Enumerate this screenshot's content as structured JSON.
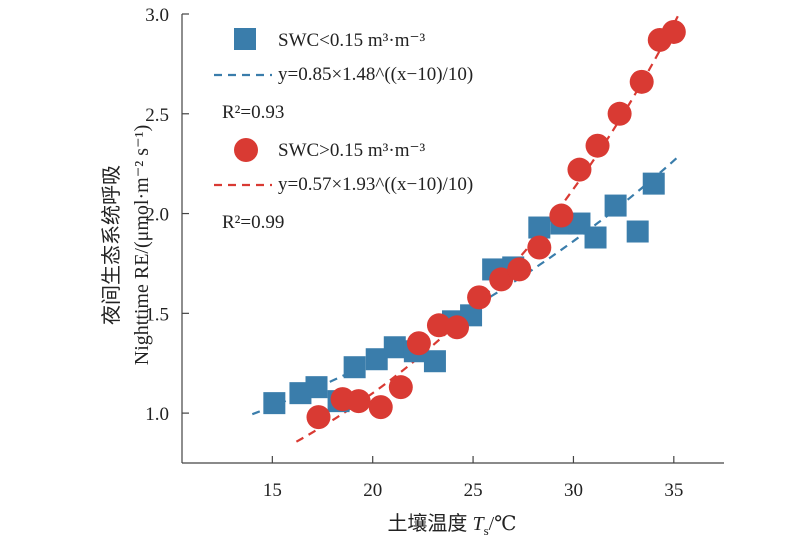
{
  "chart_data": {
    "type": "scatter",
    "xlabel": "土壤温度 Ts/℃",
    "xlabel_main": "土壤温度 ",
    "xlabel_symbol": "T",
    "xlabel_sub": "s",
    "xlabel_unit": "/℃",
    "ylabel_cn": "夜间生态系统呼吸",
    "ylabel_en": "Nighttime RE/(μmol·m⁻² s⁻¹)",
    "xlim": [
      10.5,
      37.5
    ],
    "ylim": [
      0.75,
      3.0
    ],
    "xticks": [
      "15",
      "20",
      "25",
      "30",
      "35"
    ],
    "yticks": [
      "1.0",
      "1.5",
      "2.0",
      "2.5",
      "3.0"
    ],
    "grid": false,
    "legend_position": "top-left",
    "series": [
      {
        "name": "SWC<0.15 m³·m⁻³",
        "marker": "square",
        "color": "#3a7dab",
        "fit_label": "y=0.85×1.48^((x−10)/10)",
        "r2_label": "R²=0.93",
        "fit": {
          "a": 0.85,
          "b": 1.48,
          "x_range": [
            14,
            35.2
          ]
        },
        "points": [
          [
            15.1,
            1.05
          ],
          [
            16.4,
            1.1
          ],
          [
            17.2,
            1.13
          ],
          [
            18.3,
            1.06
          ],
          [
            19.1,
            1.23
          ],
          [
            20.2,
            1.27
          ],
          [
            21.1,
            1.33
          ],
          [
            22.1,
            1.31
          ],
          [
            23.1,
            1.26
          ],
          [
            24.0,
            1.46
          ],
          [
            24.9,
            1.49
          ],
          [
            26.0,
            1.72
          ],
          [
            27.0,
            1.73
          ],
          [
            28.3,
            1.93
          ],
          [
            29.4,
            1.95
          ],
          [
            30.3,
            1.95
          ],
          [
            31.1,
            1.88
          ],
          [
            32.1,
            2.04
          ],
          [
            33.2,
            1.91
          ],
          [
            34.0,
            2.15
          ]
        ]
      },
      {
        "name": "SWC>0.15 m³·m⁻³",
        "marker": "circle",
        "color": "#d93a33",
        "fit_label": "y=0.57×1.93^((x−10)/10)",
        "r2_label": "R²=0.99",
        "fit": {
          "a": 0.57,
          "b": 1.93,
          "x_range": [
            16.2,
            35.2
          ]
        },
        "points": [
          [
            17.3,
            0.98
          ],
          [
            18.5,
            1.07
          ],
          [
            19.3,
            1.06
          ],
          [
            20.4,
            1.03
          ],
          [
            21.4,
            1.13
          ],
          [
            22.3,
            1.35
          ],
          [
            23.3,
            1.44
          ],
          [
            24.2,
            1.43
          ],
          [
            25.3,
            1.58
          ],
          [
            26.4,
            1.67
          ],
          [
            27.3,
            1.72
          ],
          [
            28.3,
            1.83
          ],
          [
            29.4,
            1.99
          ],
          [
            30.3,
            2.22
          ],
          [
            31.2,
            2.34
          ],
          [
            32.3,
            2.5
          ],
          [
            33.4,
            2.66
          ],
          [
            34.3,
            2.87
          ],
          [
            35.0,
            2.91
          ]
        ]
      }
    ]
  }
}
